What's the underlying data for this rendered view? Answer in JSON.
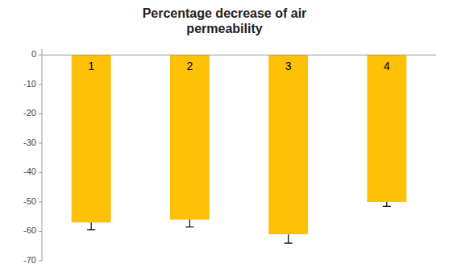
{
  "chart_data": {
    "type": "bar",
    "title": "Percentage decrease of air\npermeability",
    "categories": [
      "1",
      "2",
      "3",
      "4"
    ],
    "values": [
      -57.0,
      -56.0,
      -61.0,
      -50.0
    ],
    "errors": [
      2.5,
      2.5,
      3.0,
      1.5
    ],
    "color": "#FFC107",
    "ylim": [
      -70,
      2
    ],
    "yticks": [
      0,
      -10,
      -20,
      -30,
      -40,
      -50,
      -60,
      -70
    ],
    "grid": false
  }
}
